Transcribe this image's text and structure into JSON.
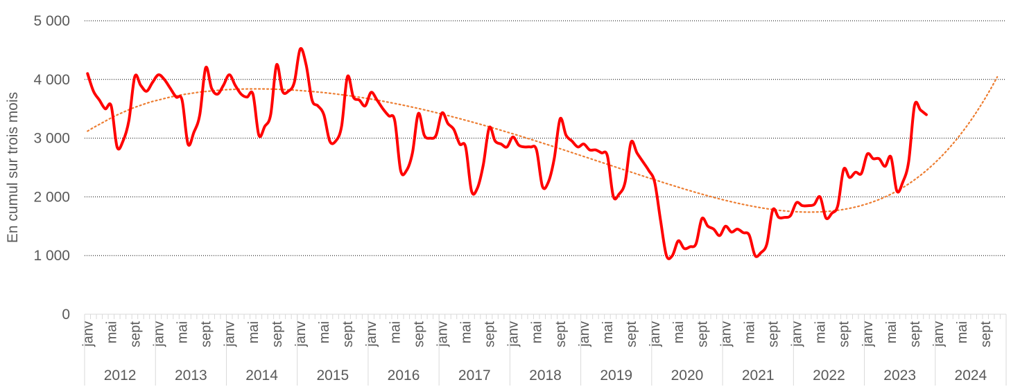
{
  "chart_data": {
    "type": "line",
    "ylabel": "En  cumul sur trois mois",
    "ylim": [
      0,
      5000
    ],
    "y_ticks": [
      "0",
      "1 000",
      "2 000",
      "3 000",
      "4 000",
      "5 000"
    ],
    "y_tick_values": [
      0,
      1000,
      2000,
      3000,
      4000,
      5000
    ],
    "grid": true,
    "month_labels": [
      "janv",
      "mai",
      "sept"
    ],
    "years": [
      "2012",
      "2013",
      "2014",
      "2015",
      "2016",
      "2017",
      "2018",
      "2019",
      "2020",
      "2021",
      "2022",
      "2023",
      "2024"
    ],
    "series": [
      {
        "color": "#ff0000",
        "values": [
          4100,
          3800,
          3650,
          3500,
          3550,
          2850,
          2950,
          3300,
          4050,
          3900,
          3800,
          3950,
          4080,
          4000,
          3850,
          3700,
          3650,
          2900,
          3100,
          3400,
          4200,
          3850,
          3750,
          3900,
          4080,
          3900,
          3750,
          3700,
          3750,
          3050,
          3200,
          3400,
          4250,
          3800,
          3800,
          3950,
          4520,
          4250,
          3650,
          3550,
          3400,
          2950,
          2950,
          3200,
          4050,
          3700,
          3650,
          3550,
          3780,
          3650,
          3500,
          3380,
          3300,
          2450,
          2450,
          2750,
          3420,
          3050,
          3000,
          3050,
          3430,
          3250,
          3150,
          2900,
          2850,
          2100,
          2150,
          2550,
          3180,
          2950,
          2900,
          2850,
          3020,
          2880,
          2850,
          2850,
          2800,
          2180,
          2250,
          2650,
          3330,
          3050,
          2950,
          2850,
          2900,
          2800,
          2800,
          2750,
          2700,
          2010,
          2050,
          2250,
          2930,
          2750,
          2600,
          2450,
          2250,
          1600,
          1000,
          1000,
          1250,
          1120,
          1150,
          1200,
          1630,
          1500,
          1450,
          1340,
          1500,
          1400,
          1450,
          1390,
          1350,
          1000,
          1050,
          1200,
          1780,
          1650,
          1650,
          1680,
          1900,
          1850,
          1850,
          1870,
          2000,
          1640,
          1720,
          1850,
          2470,
          2330,
          2420,
          2400,
          2730,
          2650,
          2650,
          2520,
          2680,
          2100,
          2250,
          2600,
          3560,
          3480,
          3400
        ]
      }
    ],
    "trendline": {
      "type": "polynomial",
      "color": "#ed7d31",
      "values": [
        3120,
        3180,
        3235,
        3290,
        3345,
        3395,
        3440,
        3485,
        3525,
        3560,
        3595,
        3625,
        3650,
        3675,
        3700,
        3720,
        3740,
        3755,
        3770,
        3785,
        3795,
        3805,
        3815,
        3822,
        3828,
        3832,
        3836,
        3838,
        3839,
        3839,
        3838,
        3836,
        3833,
        3829,
        3824,
        3818,
        3811,
        3803,
        3795,
        3786,
        3776,
        3765,
        3753,
        3740,
        3727,
        3713,
        3698,
        3682,
        3665,
        3648,
        3630,
        3611,
        3591,
        3571,
        3550,
        3528,
        3506,
        3483,
        3459,
        3435,
        3410,
        3385,
        3359,
        3332,
        3305,
        3278,
        3250,
        3222,
        3193,
        3164,
        3134,
        3104,
        3074,
        3043,
        3012,
        2981,
        2949,
        2917,
        2885,
        2853,
        2820,
        2787,
        2754,
        2721,
        2688,
        2655,
        2621,
        2588,
        2555,
        2521,
        2488,
        2455,
        2422,
        2389,
        2356,
        2323,
        2291,
        2259,
        2227,
        2196,
        2165,
        2134,
        2104,
        2075,
        2046,
        2018,
        1991,
        1965,
        1940,
        1916,
        1893,
        1871,
        1851,
        1832,
        1814,
        1798,
        1784,
        1771,
        1761,
        1752,
        1746,
        1742,
        1740,
        1741,
        1744,
        1750,
        1759,
        1771,
        1786,
        1805,
        1827,
        1853,
        1883,
        1917,
        1955,
        1998,
        2046,
        2099,
        2157,
        2221,
        2291,
        2367,
        2449,
        2538,
        2634,
        2737,
        2848,
        2966,
        3093,
        3228,
        3372,
        3525,
        3688,
        3860,
        4043
      ]
    }
  }
}
